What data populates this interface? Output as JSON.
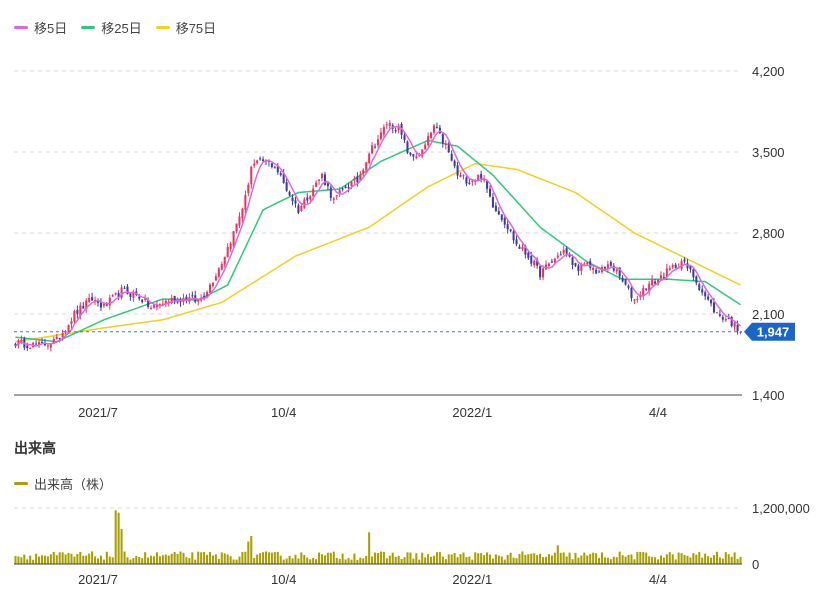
{
  "colors": {
    "up": "#f0325a",
    "down": "#3c3ca8",
    "ma5": "#e066e0",
    "ma25": "#2ec97a",
    "ma75": "#f0d020",
    "volume": "#a8a000",
    "grid": "#d8d8d8",
    "current_badge": "#1a66c8"
  },
  "legend": {
    "ma5": "移5日",
    "ma25": "移25日",
    "ma75": "移75日"
  },
  "volume_section": {
    "title": "出来高",
    "legend": "出来高（株）"
  },
  "current_price_label": "1,947",
  "chart_data": [
    {
      "type": "candlestick",
      "ylim": [
        1400,
        4200
      ],
      "yticks": [
        "4,200",
        "3,500",
        "2,800",
        "2,100",
        "1,400"
      ],
      "ytick_values": [
        4200,
        3500,
        2800,
        2100,
        1400
      ],
      "xticks": [
        {
          "label": "2021/7",
          "index": 28
        },
        {
          "label": "10/4",
          "index": 91
        },
        {
          "label": "2022/1",
          "index": 155
        },
        {
          "label": "4/4",
          "index": 218
        }
      ],
      "current_price": 1947,
      "series_close_anchors": [
        [
          0,
          1850
        ],
        [
          8,
          1830
        ],
        [
          14,
          1870
        ],
        [
          20,
          2100
        ],
        [
          26,
          2230
        ],
        [
          30,
          2160
        ],
        [
          36,
          2300
        ],
        [
          42,
          2250
        ],
        [
          46,
          2150
        ],
        [
          52,
          2220
        ],
        [
          58,
          2240
        ],
        [
          62,
          2210
        ],
        [
          66,
          2350
        ],
        [
          70,
          2550
        ],
        [
          74,
          2800
        ],
        [
          78,
          3100
        ],
        [
          80,
          3380
        ],
        [
          84,
          3420
        ],
        [
          88,
          3380
        ],
        [
          92,
          3180
        ],
        [
          96,
          3000
        ],
        [
          100,
          3150
        ],
        [
          104,
          3300
        ],
        [
          108,
          3080
        ],
        [
          112,
          3200
        ],
        [
          116,
          3250
        ],
        [
          120,
          3500
        ],
        [
          124,
          3650
        ],
        [
          126,
          3750
        ],
        [
          130,
          3700
        ],
        [
          134,
          3450
        ],
        [
          138,
          3500
        ],
        [
          142,
          3720
        ],
        [
          146,
          3550
        ],
        [
          150,
          3300
        ],
        [
          154,
          3250
        ],
        [
          158,
          3300
        ],
        [
          162,
          3050
        ],
        [
          166,
          2900
        ],
        [
          170,
          2700
        ],
        [
          174,
          2600
        ],
        [
          178,
          2450
        ],
        [
          182,
          2550
        ],
        [
          186,
          2650
        ],
        [
          190,
          2500
        ],
        [
          194,
          2520
        ],
        [
          198,
          2460
        ],
        [
          202,
          2530
        ],
        [
          206,
          2380
        ],
        [
          210,
          2220
        ],
        [
          214,
          2340
        ],
        [
          218,
          2400
        ],
        [
          222,
          2480
        ],
        [
          226,
          2560
        ],
        [
          230,
          2430
        ],
        [
          234,
          2250
        ],
        [
          238,
          2100
        ],
        [
          242,
          2050
        ],
        [
          246,
          1947
        ]
      ],
      "ma75_anchors": [
        [
          0,
          1860
        ],
        [
          30,
          1980
        ],
        [
          50,
          2050
        ],
        [
          70,
          2200
        ],
        [
          95,
          2600
        ],
        [
          120,
          2850
        ],
        [
          140,
          3200
        ],
        [
          156,
          3400
        ],
        [
          170,
          3350
        ],
        [
          190,
          3150
        ],
        [
          210,
          2800
        ],
        [
          230,
          2550
        ],
        [
          246,
          2350
        ]
      ],
      "ma25_anchors": [
        [
          0,
          1900
        ],
        [
          14,
          1860
        ],
        [
          30,
          2050
        ],
        [
          50,
          2230
        ],
        [
          62,
          2220
        ],
        [
          72,
          2350
        ],
        [
          84,
          3000
        ],
        [
          96,
          3150
        ],
        [
          110,
          3180
        ],
        [
          124,
          3420
        ],
        [
          140,
          3600
        ],
        [
          150,
          3550
        ],
        [
          162,
          3300
        ],
        [
          178,
          2850
        ],
        [
          194,
          2550
        ],
        [
          206,
          2400
        ],
        [
          222,
          2400
        ],
        [
          234,
          2380
        ],
        [
          246,
          2180
        ]
      ]
    },
    {
      "type": "bar",
      "title": "出来高",
      "ylim": [
        0,
        1200000
      ],
      "yticks": [
        "1,200,000",
        "0"
      ],
      "ytick_values": [
        1200000,
        0
      ],
      "baseline_volume": 180000,
      "volume_spikes": [
        {
          "index": 34,
          "value": 1150000
        },
        {
          "index": 35,
          "value": 1100000
        },
        {
          "index": 36,
          "value": 750000
        },
        {
          "index": 79,
          "value": 480000
        },
        {
          "index": 80,
          "value": 600000
        },
        {
          "index": 120,
          "value": 680000
        },
        {
          "index": 184,
          "value": 400000
        }
      ]
    }
  ]
}
